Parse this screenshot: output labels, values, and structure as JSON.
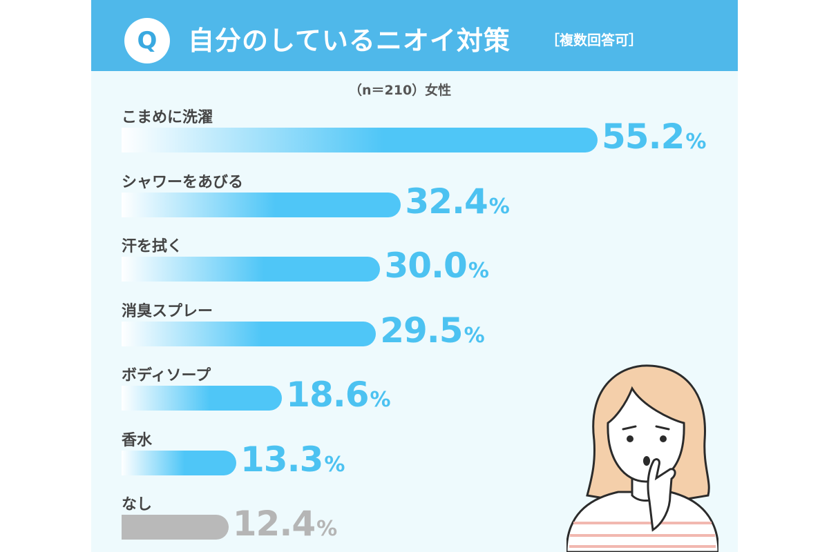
{
  "header": {
    "q_mark": "Q",
    "title": "自分のしているニオイ対策",
    "subtitle": "［複数回答可］"
  },
  "sample_note": "（n＝210）女性",
  "colors": {
    "header": "#4fb8ea",
    "bar_accent": "#4fc6f7",
    "value_text": "#4cc2f1",
    "none_bar": "#b9b9b9",
    "none_text": "#b5b5b5"
  },
  "chart_data": {
    "type": "bar",
    "orientation": "horizontal",
    "unit": "%",
    "categories": [
      "こまめに洗濯",
      "シャワーをあびる",
      "汗を拭く",
      "消臭スプレー",
      "ボディソープ",
      "香水",
      "なし"
    ],
    "values": [
      55.2,
      32.4,
      30.0,
      29.5,
      18.6,
      13.3,
      12.4
    ],
    "value_labels": [
      "55.2",
      "32.4",
      "30.0",
      "29.5",
      "18.6",
      "13.3",
      "12.4"
    ],
    "percent_sign": "%",
    "highlight": [
      true,
      true,
      true,
      true,
      true,
      true,
      false
    ]
  },
  "illustration": "woman-thinking-icon"
}
